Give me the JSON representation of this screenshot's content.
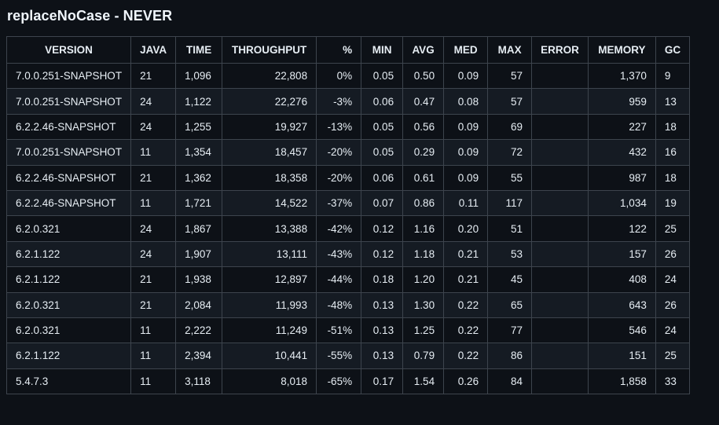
{
  "title": "replaceNoCase - NEVER",
  "columns": [
    "VERSION",
    "JAVA",
    "TIME",
    "THROUGHPUT",
    "%",
    "MIN",
    "AVG",
    "MED",
    "MAX",
    "ERROR",
    "MEMORY",
    "GC"
  ],
  "rows": [
    [
      "7.0.0.251-SNAPSHOT",
      "21",
      "1,096",
      "22,808",
      "0%",
      "0.05",
      "0.50",
      "0.09",
      "57",
      "",
      "1,370",
      "9"
    ],
    [
      "7.0.0.251-SNAPSHOT",
      "24",
      "1,122",
      "22,276",
      "-3%",
      "0.06",
      "0.47",
      "0.08",
      "57",
      "",
      "959",
      "13"
    ],
    [
      "6.2.2.46-SNAPSHOT",
      "24",
      "1,255",
      "19,927",
      "-13%",
      "0.05",
      "0.56",
      "0.09",
      "69",
      "",
      "227",
      "18"
    ],
    [
      "7.0.0.251-SNAPSHOT",
      "11",
      "1,354",
      "18,457",
      "-20%",
      "0.05",
      "0.29",
      "0.09",
      "72",
      "",
      "432",
      "16"
    ],
    [
      "6.2.2.46-SNAPSHOT",
      "21",
      "1,362",
      "18,358",
      "-20%",
      "0.06",
      "0.61",
      "0.09",
      "55",
      "",
      "987",
      "18"
    ],
    [
      "6.2.2.46-SNAPSHOT",
      "11",
      "1,721",
      "14,522",
      "-37%",
      "0.07",
      "0.86",
      "0.11",
      "117",
      "",
      "1,034",
      "19"
    ],
    [
      "6.2.0.321",
      "24",
      "1,867",
      "13,388",
      "-42%",
      "0.12",
      "1.16",
      "0.20",
      "51",
      "",
      "122",
      "25"
    ],
    [
      "6.2.1.122",
      "24",
      "1,907",
      "13,111",
      "-43%",
      "0.12",
      "1.18",
      "0.21",
      "53",
      "",
      "157",
      "26"
    ],
    [
      "6.2.1.122",
      "21",
      "1,938",
      "12,897",
      "-44%",
      "0.18",
      "1.20",
      "0.21",
      "45",
      "",
      "408",
      "24"
    ],
    [
      "6.2.0.321",
      "21",
      "2,084",
      "11,993",
      "-48%",
      "0.13",
      "1.30",
      "0.22",
      "65",
      "",
      "643",
      "26"
    ],
    [
      "6.2.0.321",
      "11",
      "2,222",
      "11,249",
      "-51%",
      "0.13",
      "1.25",
      "0.22",
      "77",
      "",
      "546",
      "24"
    ],
    [
      "6.2.1.122",
      "11",
      "2,394",
      "10,441",
      "-55%",
      "0.13",
      "0.79",
      "0.22",
      "86",
      "",
      "151",
      "25"
    ],
    [
      "5.4.7.3",
      "11",
      "3,118",
      "8,018",
      "-65%",
      "0.17",
      "1.54",
      "0.26",
      "84",
      "",
      "1,858",
      "33"
    ]
  ]
}
